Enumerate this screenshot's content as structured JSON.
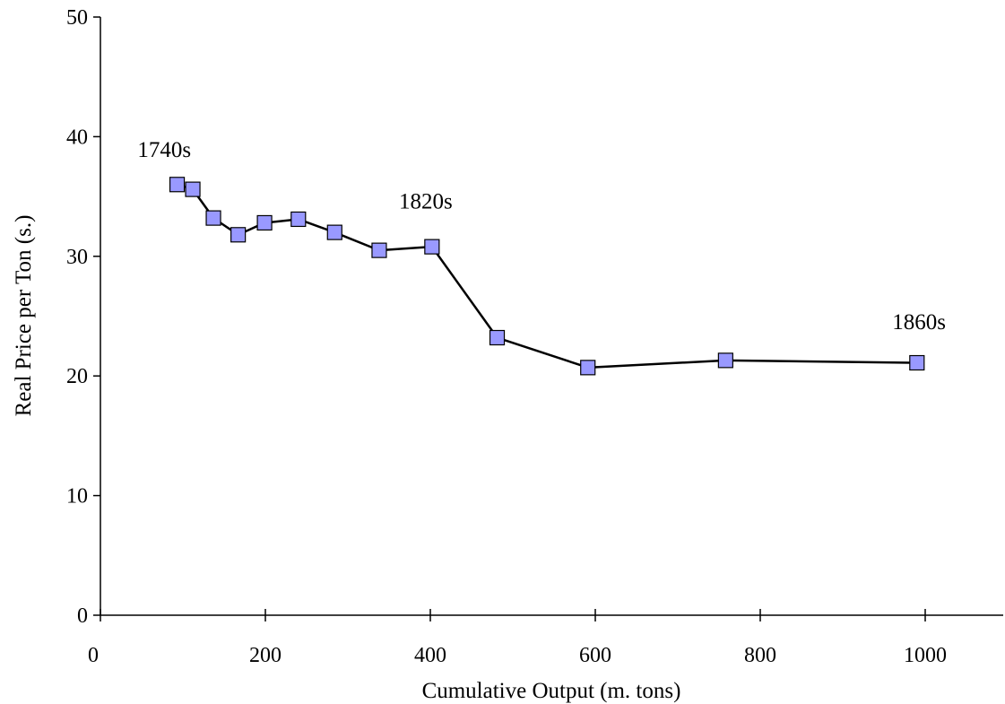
{
  "chart_data": {
    "type": "line",
    "title": "",
    "xlabel": "Cumulative Output (m. tons)",
    "ylabel": "Real Price per Ton (s.)",
    "xlim": [
      0,
      1100
    ],
    "ylim": [
      0,
      50
    ],
    "x_ticks": [
      0,
      200,
      400,
      600,
      800,
      1000
    ],
    "y_ticks": [
      0,
      10,
      20,
      30,
      40,
      50
    ],
    "grid": false,
    "series": [
      {
        "marker": "square",
        "marker_color": "#9999ff",
        "line_color": "#000000",
        "points": [
          {
            "x": 93,
            "y": 36.0
          },
          {
            "x": 112,
            "y": 35.6
          },
          {
            "x": 137,
            "y": 33.2
          },
          {
            "x": 167,
            "y": 31.8
          },
          {
            "x": 199,
            "y": 32.8
          },
          {
            "x": 240,
            "y": 33.1
          },
          {
            "x": 284,
            "y": 32.0
          },
          {
            "x": 338,
            "y": 30.5
          },
          {
            "x": 402,
            "y": 30.8
          },
          {
            "x": 481,
            "y": 23.2
          },
          {
            "x": 591,
            "y": 20.7
          },
          {
            "x": 758,
            "y": 21.3
          },
          {
            "x": 990,
            "y": 21.1
          }
        ]
      }
    ],
    "annotations": [
      {
        "text": "1740s",
        "x": 45,
        "y": 38.3
      },
      {
        "text": "1820s",
        "x": 362,
        "y": 34.0
      },
      {
        "text": "1860s",
        "x": 960,
        "y": 23.9
      }
    ]
  }
}
